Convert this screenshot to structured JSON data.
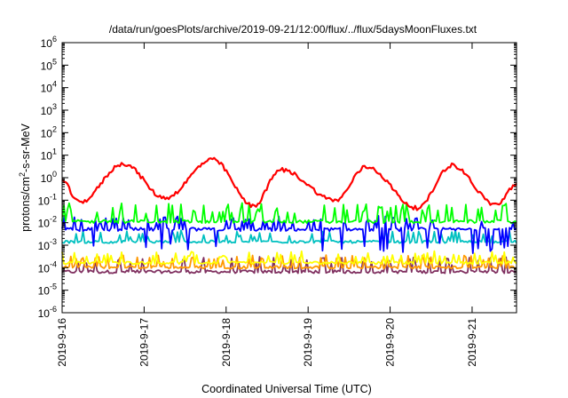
{
  "chart_data": {
    "type": "line",
    "title": "/data/run/goesPlots/archive/2019-09-21/12:00/flux/../flux/5daysMoonFluxes.txt",
    "xlabel": "Coordinated Universal Time (UTC)",
    "ylabel_parts": {
      "pre": "protons/cm",
      "sup": "2",
      "post": "-s-sr-MeV"
    },
    "y_scale": "log",
    "ylim": [
      1e-06,
      1000000.0
    ],
    "xlim": [
      "2019-09-16T00:00",
      "2019-09-21T13:00"
    ],
    "x_ticks": [
      "2019-9-16",
      "2019-9-17",
      "2019-9-18",
      "2019-9-19",
      "2019-9-20",
      "2019-9-21"
    ],
    "y_tick_exponents": [
      -6,
      -5,
      -4,
      -3,
      -2,
      -1,
      0,
      1,
      2,
      3,
      4,
      5,
      6
    ],
    "grid": false,
    "legend": "none",
    "series": [
      {
        "color": "#ff0000",
        "approx_values": "log10 flux oscillating between about -1.3 and 0.7 with a daily period, maxima near 16 18:00, 17 20:00, 18 16:00, 19 17:00, 20 18:00"
      },
      {
        "color": "#00ff00",
        "approx_values": "noisy, baseline about 1e-2 with spikes to about 8e-2"
      },
      {
        "color": "#0000ff",
        "approx_values": "noisy band around 4e-3 to 5e-3, dips to about 1e-3"
      },
      {
        "color": "#00c0c0",
        "approx_values": "about 1e-3 to 2.5e-3"
      },
      {
        "color": "#ffff00",
        "approx_values": "about 1.5e-4, spikes to about 4e-4"
      },
      {
        "color": "#ff9900",
        "approx_values": "about 1e-4, spikes to about 3e-4"
      },
      {
        "color": "#803060",
        "approx_values": "about 7e-5, spikes to about 2.5e-4"
      }
    ]
  }
}
